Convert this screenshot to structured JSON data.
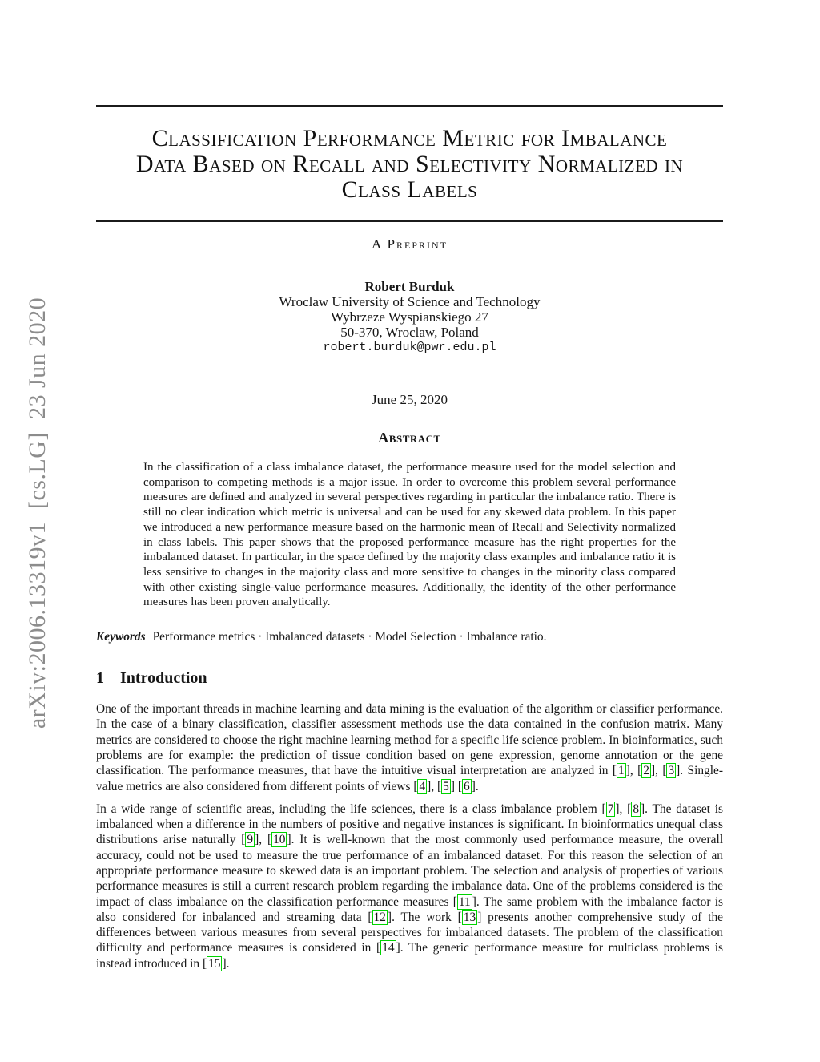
{
  "sidebar": {
    "arxiv_label": "arXiv:2006.13319v1  [cs.LG]  23 Jun 2020"
  },
  "header": {
    "title": "Classification Performance Metric for Imbalance Data Based on Recall and Selectivity Normalized in Class Labels",
    "title_lines": [
      "Classification Performance Metric for Imbalance",
      "Data Based on Recall and Selectivity Normalized in",
      "Class Labels"
    ],
    "preprint_label": "A Preprint"
  },
  "author": {
    "name": "Robert Burduk",
    "affiliation": "Wroclaw University of Science and Technology",
    "address_line1": "Wybrzeze Wyspianskiego 27",
    "address_line2": "50-370, Wroclaw, Poland",
    "email": "robert.burduk@pwr.edu.pl"
  },
  "date": "June 25, 2020",
  "abstract": {
    "heading": "Abstract",
    "text": "In the classification of a class imbalance dataset, the performance measure used for the model selection and comparison to competing methods is a major issue. In order to overcome this problem several performance measures are defined and analyzed in several perspectives regarding in particular the imbalance ratio. There is still no clear indication which metric is universal and can be used for any skewed data problem. In this paper we introduced a new performance measure based on the harmonic mean of Recall and Selectivity normalized in class labels. This paper shows that the proposed performance measure has the right properties for the imbalanced dataset. In particular, in the space defined by the majority class examples and imbalance ratio it is less sensitive to changes in the majority class and more sensitive to changes in the minority class compared with other existing single-value performance measures. Additionally, the identity of the other performance measures has been proven analytically."
  },
  "keywords": {
    "label": "Keywords",
    "text": "Performance metrics · Imbalanced datasets · Model Selection · Imbalance ratio."
  },
  "sections": {
    "intro": {
      "number": "1",
      "title": "Introduction",
      "paragraph1": [
        {
          "t": "One of the important threads in machine learning and data mining is the evaluation of the algorithm or classifier performance. In the case of a binary classification, classifier assessment methods use the data contained in the confusion matrix. Many metrics are considered to choose the right machine learning method for a specific life science problem. In bioinformatics, such problems are for example: the prediction of tissue condition based on gene expression, genome annotation or the gene classification. The performance measures, that have the intuitive visual interpretation are analyzed in "
        },
        {
          "c": "1"
        },
        {
          "t": ", "
        },
        {
          "c": "2"
        },
        {
          "t": ", "
        },
        {
          "c": "3"
        },
        {
          "t": ". Single-value metrics are also considered from different points of views "
        },
        {
          "c": "4"
        },
        {
          "t": ", "
        },
        {
          "c": "5"
        },
        {
          "t": " "
        },
        {
          "c": "6"
        },
        {
          "t": "."
        }
      ],
      "paragraph2": [
        {
          "t": "In a wide range of scientific areas, including the life sciences, there is a class imbalance problem "
        },
        {
          "c": "7"
        },
        {
          "t": ", "
        },
        {
          "c": "8"
        },
        {
          "t": ". The dataset is imbalanced when a difference in the numbers of positive and negative instances is significant. In bioinformatics unequal class distributions arise naturally "
        },
        {
          "c": "9"
        },
        {
          "t": ", "
        },
        {
          "c": "10"
        },
        {
          "t": ". It is well-known that the most commonly used performance measure, the overall accuracy, could not be used to measure the true performance of an imbalanced dataset. For this reason the selection of an appropriate performance measure to skewed data is an important problem. The selection and analysis of properties of various performance measures is still a current research problem regarding the imbalance data. One of the problems considered is the impact of class imbalance on the classification performance measures "
        },
        {
          "c": "11"
        },
        {
          "t": ". The same problem with the imbalance factor is also considered for inbalanced and streaming data "
        },
        {
          "c": "12"
        },
        {
          "t": ". The work "
        },
        {
          "c": "13"
        },
        {
          "t": " presents another comprehensive study of the differences between various measures from several perspectives for imbalanced datasets. The problem of the classification difficulty and performance measures is considered in "
        },
        {
          "c": "14"
        },
        {
          "t": ". The generic performance measure for multiclass problems is instead introduced in "
        },
        {
          "c": "15"
        },
        {
          "t": "."
        }
      ]
    }
  }
}
